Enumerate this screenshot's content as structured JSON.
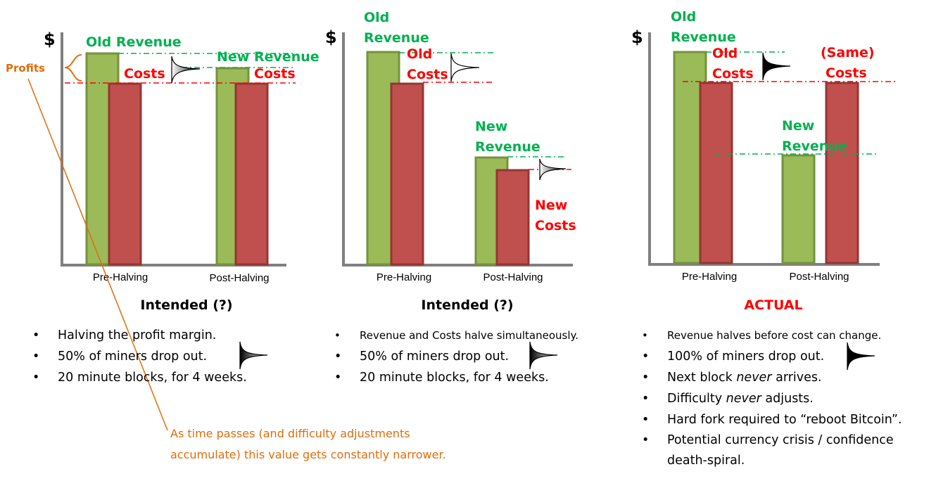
{
  "panels": [
    {
      "dollar": "$",
      "old_revenue": "Old Revenue",
      "new_revenue": "New Revenue",
      "costs_1": "Costs",
      "costs_2": "Costs",
      "profits": "Profits",
      "x_labels": [
        "Pre-Halving",
        "Post-Halving"
      ],
      "title": "Intended (?)",
      "bullets": [
        "Halving the profit margin.",
        "50% of miners drop out.",
        "20 minute blocks, for 4 weeks."
      ]
    },
    {
      "dollar": "$",
      "old_revenue_l1": "Old",
      "old_revenue_l2": "Revenue",
      "old_costs_l1": "Old",
      "old_costs_l2": "Costs",
      "new_revenue_l1": "New",
      "new_revenue_l2": "Revenue",
      "new_costs_l1": "New",
      "new_costs_l2": "Costs",
      "x_labels": [
        "Pre-Halving",
        "Post-Halving"
      ],
      "title": "Intended (?)",
      "bullets": [
        "Revenue  and Costs halve simultaneously.",
        "50% of miners drop out.",
        "20 minute blocks, for 4 weeks."
      ]
    },
    {
      "dollar": "$",
      "old_revenue_l1": "Old",
      "old_revenue_l2": "Revenue",
      "old_costs_l1": "Old",
      "old_costs_l2": "Costs",
      "same_costs_l1": "(Same)",
      "same_costs_l2": "Costs",
      "new_revenue_l1": "New",
      "new_revenue_l2": "Revenue",
      "x_labels": [
        "Pre-Halving",
        "Post-Halving"
      ],
      "title": "ACTUAL",
      "bullets": [
        "Revenue  halves before cost can change.",
        "100% of miners drop out.",
        "Next block",
        "never",
        "arrives.",
        "Difficulty",
        "never",
        "adjusts.",
        "Hard fork required to “reboot Bitcoin”.",
        "Potential currency crisis / confidence",
        "death-spiral."
      ]
    }
  ],
  "annotation": {
    "line1": "As time passes (and difficulty adjustments",
    "line2": "accumulate) this value gets constantly narrower."
  },
  "colors": {
    "revenue_fill": "#9bbb59",
    "revenue_stroke": "#76923c",
    "cost_fill": "#c0504d",
    "cost_stroke": "#943634",
    "green_text": "#00b050",
    "red_text": "#ff0000",
    "orange": "#e46c0a",
    "axis": "#808080"
  }
}
